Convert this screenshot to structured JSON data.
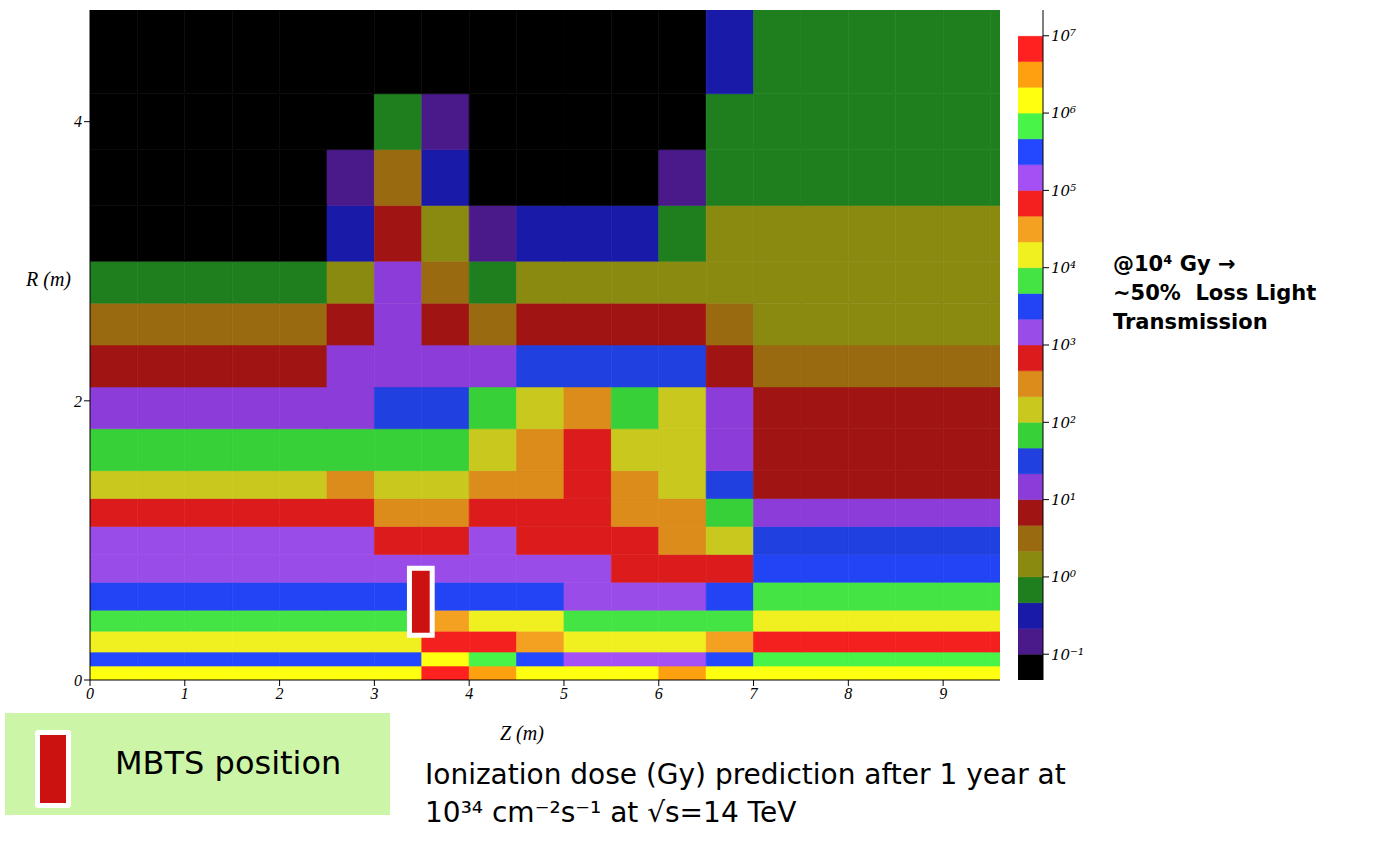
{
  "chart_data": {
    "type": "heatmap",
    "xlabel": "Z (m)",
    "ylabel": "R (m)",
    "xlim": [
      0,
      9.6
    ],
    "ylim": [
      0,
      4.8
    ],
    "xticks": [
      0,
      1,
      2,
      3,
      4,
      5,
      6,
      7,
      8,
      9
    ],
    "yticks": [
      0,
      2,
      4
    ],
    "grid": false,
    "x_bins": [
      0,
      0.5,
      1,
      1.5,
      2,
      2.5,
      3,
      3.5,
      4,
      4.5,
      5,
      5.5,
      6,
      6.5,
      7,
      7.5,
      8,
      8.5,
      9,
      9.5,
      9.6
    ],
    "y_bins": [
      0,
      0.1,
      0.2,
      0.35,
      0.5,
      0.7,
      0.9,
      1.1,
      1.3,
      1.5,
      1.8,
      2.1,
      2.4,
      2.7,
      3.0,
      3.4,
      3.8,
      4.2,
      4.8
    ],
    "cells": [
      [
        1500000,
        1500000,
        1500000,
        1500000,
        1500000,
        1500000,
        1500000,
        7000000,
        3000000,
        1500000,
        1500000,
        1500000,
        3000000,
        1500000,
        1500000,
        1500000,
        1500000,
        1500000,
        1500000,
        1500000
      ],
      [
        300000,
        300000,
        300000,
        300000,
        300000,
        300000,
        300000,
        1500000,
        700000,
        300000,
        150000,
        150000,
        150000,
        300000,
        700000,
        700000,
        700000,
        700000,
        700000,
        700000
      ],
      [
        15000,
        15000,
        15000,
        15000,
        15000,
        15000,
        15000,
        70000,
        70000,
        30000,
        15000,
        15000,
        15000,
        30000,
        70000,
        70000,
        70000,
        70000,
        70000,
        70000
      ],
      [
        7000,
        7000,
        7000,
        7000,
        7000,
        7000,
        7000,
        30000,
        15000,
        15000,
        7000,
        7000,
        7000,
        7000,
        15000,
        15000,
        15000,
        15000,
        15000,
        15000
      ],
      [
        3000,
        3000,
        3000,
        3000,
        3000,
        3000,
        3000,
        3000,
        3000,
        3000,
        1500,
        1500,
        1500,
        3000,
        7000,
        7000,
        7000,
        7000,
        7000,
        7000
      ],
      [
        1500,
        1500,
        1500,
        1500,
        1500,
        1500,
        1500,
        1500,
        1500,
        1500,
        1500,
        700,
        700,
        700,
        3000,
        3000,
        3000,
        3000,
        3000,
        3000
      ],
      [
        1500,
        1500,
        1500,
        1500,
        1500,
        1500,
        700,
        700,
        1500,
        700,
        700,
        700,
        300,
        150,
        30,
        30,
        30,
        30,
        30,
        30
      ],
      [
        700,
        700,
        700,
        700,
        700,
        700,
        300,
        300,
        700,
        700,
        700,
        300,
        300,
        70,
        15,
        15,
        15,
        15,
        15,
        15
      ],
      [
        150,
        150,
        150,
        150,
        150,
        300,
        150,
        150,
        300,
        300,
        700,
        300,
        150,
        30,
        7,
        7,
        7,
        7,
        7,
        7
      ],
      [
        70,
        70,
        70,
        70,
        70,
        70,
        70,
        70,
        150,
        300,
        700,
        150,
        150,
        15,
        7,
        7,
        7,
        7,
        7,
        7
      ],
      [
        15,
        15,
        15,
        15,
        15,
        15,
        30,
        30,
        70,
        150,
        300,
        70,
        150,
        15,
        7,
        7,
        7,
        7,
        7,
        7
      ],
      [
        7,
        7,
        7,
        7,
        7,
        15,
        15,
        15,
        15,
        30,
        30,
        30,
        30,
        7,
        3,
        3,
        3,
        3,
        3,
        3
      ],
      [
        3,
        3,
        3,
        3,
        3,
        7,
        15,
        7,
        3,
        7,
        7,
        7,
        7,
        3,
        1.5,
        1.5,
        1.5,
        1.5,
        1.5,
        1.5
      ],
      [
        0.7,
        0.7,
        0.7,
        0.7,
        0.7,
        1.5,
        15,
        3,
        0.7,
        1.5,
        1.5,
        1.5,
        1.5,
        1.5,
        1.5,
        1.5,
        1.5,
        1.5,
        1.5,
        1.5
      ],
      [
        0.06,
        0.06,
        0.06,
        0.06,
        0.06,
        0.3,
        7,
        1.5,
        0.15,
        0.3,
        0.3,
        0.3,
        0.7,
        1.5,
        1.5,
        1.5,
        1.5,
        1.5,
        1.5,
        1.5
      ],
      [
        0.06,
        0.06,
        0.06,
        0.06,
        0.06,
        0.15,
        3,
        0.3,
        0.06,
        0.06,
        0.06,
        0.06,
        0.15,
        0.7,
        0.7,
        0.7,
        0.7,
        0.7,
        0.7,
        0.7
      ],
      [
        0.06,
        0.06,
        0.06,
        0.06,
        0.06,
        0.06,
        0.7,
        0.15,
        0.06,
        0.06,
        0.06,
        0.06,
        0.06,
        0.7,
        0.7,
        0.7,
        0.7,
        0.7,
        0.7,
        0.7
      ],
      [
        0.06,
        0.06,
        0.06,
        0.06,
        0.06,
        0.06,
        0.06,
        0.06,
        0.06,
        0.06,
        0.06,
        0.06,
        0.06,
        0.3,
        0.7,
        0.7,
        0.7,
        0.7,
        0.7,
        0.7
      ]
    ],
    "colorbar": {
      "range": [
        0.046416,
        21544347
      ],
      "ticks": [
        {
          "value": 0.1,
          "label": "10⁻¹"
        },
        {
          "value": 1,
          "label": "10⁰"
        },
        {
          "value": 10,
          "label": "10¹"
        },
        {
          "value": 100,
          "label": "10²"
        },
        {
          "value": 1000,
          "label": "10³"
        },
        {
          "value": 10000,
          "label": "10⁴"
        },
        {
          "value": 100000,
          "label": "10⁵"
        },
        {
          "value": 1000000,
          "label": "10⁶"
        },
        {
          "value": 10000000,
          "label": "10⁷"
        }
      ],
      "colors": [
        "#000000",
        "#4a1a8a",
        "#1a1aa8",
        "#1f7f1f",
        "#8a8a10",
        "#9a6a10",
        "#a01414",
        "#8c3cd8",
        "#2040e0",
        "#38d038",
        "#c8c81e",
        "#dc8c1a",
        "#dc1c1c",
        "#9a4ce8",
        "#2244f4",
        "#44e444",
        "#f0f020",
        "#f4a020",
        "#f42020",
        "#a450f4",
        "#2448ff",
        "#48f448",
        "#ffff10",
        "#ffa010",
        "#ff2020",
        "#ffffff"
      ]
    },
    "mbts": {
      "label": "MBTS position",
      "z": [
        3.37,
        3.61
      ],
      "r": [
        0.32,
        0.8
      ],
      "color": "#cc1111"
    },
    "annotation": [
      "@10⁴ Gy →",
      "~50%  Loss Light",
      "Transmission"
    ],
    "caption": [
      "Ionization dose (Gy) prediction after 1 year at",
      "10³⁴ cm⁻²s⁻¹ at √s=14 TeV"
    ]
  }
}
